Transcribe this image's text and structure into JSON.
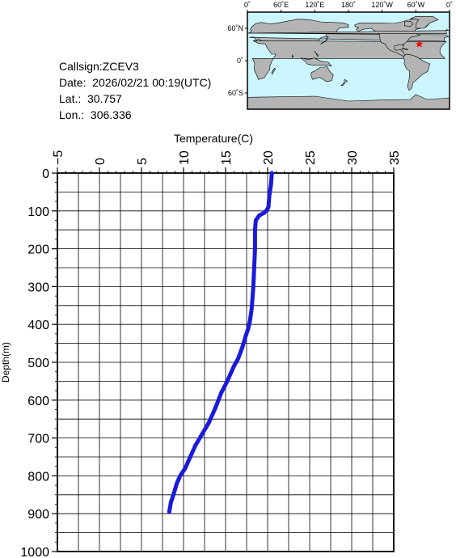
{
  "info": {
    "callsign": "Callsign:ZCEV3",
    "date": "Date:  2026/02/21 00:19(UTC)",
    "lat": "Lat.:  30.757",
    "lon": "Lon.:  306.336"
  },
  "map": {
    "top_labels": [
      "0˚",
      "60˚E",
      "120˚E",
      "180˚",
      "120˚W",
      "60˚W",
      "0˚"
    ],
    "lat_labels": [
      "60˚N",
      "0˚",
      "60˚S"
    ],
    "ocean_color": "#ccf6ff",
    "land_color": "#b4b4b4",
    "marker": {
      "lon": 306.336,
      "lat": 30.757,
      "color": "#ff0000"
    }
  },
  "chart_data": {
    "type": "line",
    "xlabel": "Temperature(C)",
    "ylabel": "Depth(m)",
    "xlim": [
      -5,
      35
    ],
    "ylim": [
      0,
      1000
    ],
    "x_ticks": [
      "-5",
      "0",
      "5",
      "10",
      "15",
      "20",
      "25",
      "30",
      "35"
    ],
    "y_ticks": [
      "0",
      "100",
      "200",
      "300",
      "400",
      "500",
      "600",
      "700",
      "800",
      "900",
      "1000"
    ],
    "grid": true,
    "line_color": "#1a1adb",
    "series": [
      {
        "x": [
          20.5,
          20.4,
          20.2,
          20.1,
          19.9,
          19.6,
          19.0,
          18.6,
          18.5,
          18.5,
          18.4,
          18.3,
          18.2,
          18.1,
          17.9,
          17.7,
          17.4,
          17.0,
          16.5,
          16.0,
          15.2,
          14.5,
          13.8,
          13.0,
          12.2,
          11.4,
          10.8,
          10.2,
          9.6,
          9.2,
          8.8,
          8.5,
          8.3
        ],
        "y": [
          0,
          30,
          60,
          90,
          98,
          105,
          112,
          125,
          150,
          200,
          250,
          300,
          330,
          360,
          390,
          410,
          430,
          460,
          490,
          510,
          550,
          580,
          620,
          660,
          690,
          720,
          750,
          780,
          800,
          820,
          850,
          870,
          895
        ]
      }
    ]
  }
}
